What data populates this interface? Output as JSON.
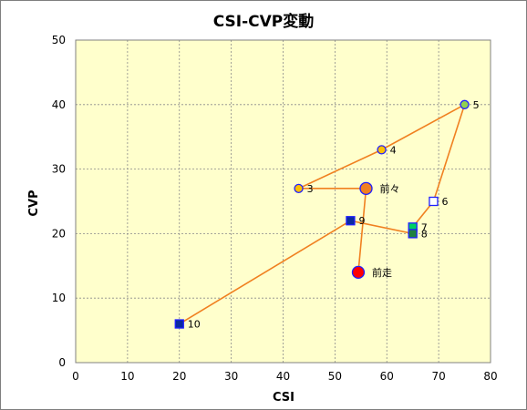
{
  "chart_data": {
    "type": "scatter",
    "title": "CSI-CVP変動",
    "xlabel": "CSI",
    "ylabel": "CVP",
    "xlim": [
      0,
      80
    ],
    "ylim": [
      0,
      50
    ],
    "x_ticks": [
      0,
      10,
      20,
      30,
      40,
      50,
      60,
      70,
      80
    ],
    "y_ticks": [
      0,
      10,
      20,
      30,
      40,
      50
    ],
    "grid": true,
    "plot_background": "#ffffcc",
    "line_color": "#f08020",
    "points": [
      {
        "label": "前走",
        "x": 54.5,
        "y": 14,
        "marker": "circle-large",
        "fill": "#ff0000",
        "stroke": "#1f1fff"
      },
      {
        "label": "前々",
        "x": 56,
        "y": 27,
        "marker": "circle-large",
        "fill": "#f08020",
        "stroke": "#1f1fff"
      },
      {
        "label": "3",
        "x": 43,
        "y": 27,
        "marker": "circle",
        "fill": "#ffc000",
        "stroke": "#1f1fff"
      },
      {
        "label": "4",
        "x": 59,
        "y": 33,
        "marker": "circle",
        "fill": "#ffc000",
        "stroke": "#1f1fff"
      },
      {
        "label": "5",
        "x": 75,
        "y": 40,
        "marker": "circle",
        "fill": "#92d050",
        "stroke": "#1f1fff"
      },
      {
        "label": "6",
        "x": 69,
        "y": 25,
        "marker": "square",
        "fill": "#ffffff",
        "stroke": "#1f1fff"
      },
      {
        "label": "7",
        "x": 65,
        "y": 21,
        "marker": "square",
        "fill": "#00d060",
        "stroke": "#1f1fff"
      },
      {
        "label": "8",
        "x": 65,
        "y": 20,
        "marker": "square",
        "fill": "#208040",
        "stroke": "#1f1fff"
      },
      {
        "label": "9",
        "x": 53,
        "y": 22,
        "marker": "square",
        "fill": "#0a2aa0",
        "stroke": "#1f1fff"
      },
      {
        "label": "10",
        "x": 20,
        "y": 6,
        "marker": "square",
        "fill": "#0a2aa0",
        "stroke": "#1f1fff"
      }
    ]
  }
}
